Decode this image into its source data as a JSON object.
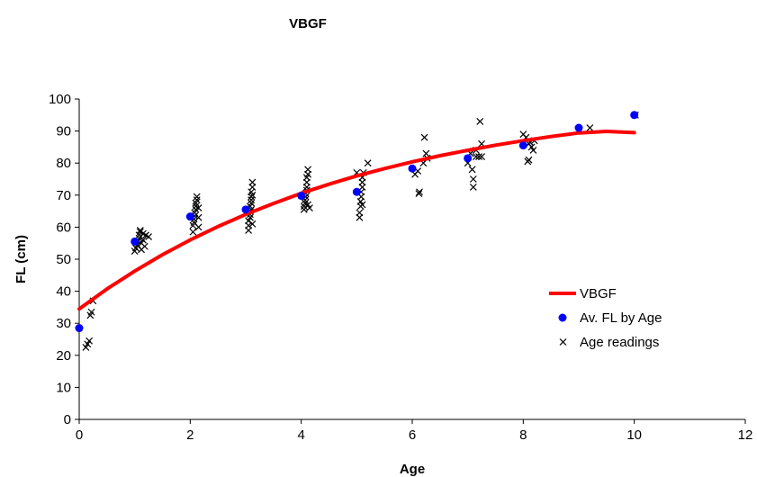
{
  "chart_data": {
    "type": "scatter",
    "title": "VBGF",
    "xlabel": "Age",
    "ylabel": "FL (cm)",
    "xlim": [
      0,
      12
    ],
    "ylim": [
      0,
      100
    ],
    "xticks": [
      0,
      2,
      4,
      6,
      8,
      10,
      12
    ],
    "yticks": [
      0,
      10,
      20,
      30,
      40,
      50,
      60,
      70,
      80,
      90,
      100
    ],
    "grid": false,
    "legend_position": "right",
    "series": [
      {
        "name": "VBGF",
        "kind": "line",
        "color": "#ff0000",
        "points": [
          [
            0,
            34.5
          ],
          [
            0.5,
            40.7
          ],
          [
            1,
            46.3
          ],
          [
            1.5,
            51.4
          ],
          [
            2,
            56.0
          ],
          [
            2.5,
            60.2
          ],
          [
            3,
            64.0
          ],
          [
            3.5,
            67.4
          ],
          [
            4,
            70.6
          ],
          [
            4.5,
            73.4
          ],
          [
            5,
            76.0
          ],
          [
            5.5,
            78.3
          ],
          [
            6,
            80.4
          ],
          [
            6.5,
            82.3
          ],
          [
            7,
            84.0
          ],
          [
            7.5,
            85.6
          ],
          [
            8,
            87.0
          ],
          [
            8.5,
            88.3
          ],
          [
            9,
            89.4
          ],
          [
            9.5,
            89.9
          ],
          [
            10,
            89.5
          ]
        ]
      },
      {
        "name": "Av. FL by Age",
        "kind": "dot",
        "color": "#0000ff",
        "points": [
          [
            0,
            28.5
          ],
          [
            1,
            55.5
          ],
          [
            2,
            63.3
          ],
          [
            3,
            65.5
          ],
          [
            4,
            69.8
          ],
          [
            5,
            71.0
          ],
          [
            6,
            78.3
          ],
          [
            7,
            81.5
          ],
          [
            8,
            85.5
          ],
          [
            9,
            91.0
          ],
          [
            10,
            95.0
          ]
        ]
      },
      {
        "name": "Age readings",
        "kind": "cross",
        "color": "#000000",
        "points": [
          [
            0.12,
            22.5
          ],
          [
            0.15,
            23.5
          ],
          [
            0.18,
            24.5
          ],
          [
            0.2,
            32.5
          ],
          [
            0.22,
            33.5
          ],
          [
            0.25,
            37.0
          ],
          [
            1.0,
            52.5
          ],
          [
            1.02,
            53.5
          ],
          [
            1.05,
            54.5
          ],
          [
            1.05,
            55.5
          ],
          [
            1.08,
            56.5
          ],
          [
            1.08,
            57.5
          ],
          [
            1.1,
            58.5
          ],
          [
            1.1,
            59.0
          ],
          [
            1.12,
            53.0
          ],
          [
            1.12,
            55.0
          ],
          [
            1.15,
            56.0
          ],
          [
            1.15,
            58.0
          ],
          [
            1.18,
            54.0
          ],
          [
            1.2,
            57.5
          ],
          [
            1.25,
            57.0
          ],
          [
            2.05,
            58.5
          ],
          [
            2.05,
            60.5
          ],
          [
            2.07,
            61.5
          ],
          [
            2.07,
            62.5
          ],
          [
            2.08,
            63.5
          ],
          [
            2.08,
            64.5
          ],
          [
            2.1,
            65.5
          ],
          [
            2.1,
            66.5
          ],
          [
            2.1,
            67.5
          ],
          [
            2.12,
            68.5
          ],
          [
            2.12,
            69.5
          ],
          [
            2.15,
            60.0
          ],
          [
            2.15,
            63.0
          ],
          [
            2.15,
            66.0
          ],
          [
            3.05,
            59.0
          ],
          [
            3.05,
            60.5
          ],
          [
            3.05,
            62.0
          ],
          [
            3.08,
            63.0
          ],
          [
            3.08,
            64.0
          ],
          [
            3.08,
            65.0
          ],
          [
            3.08,
            66.5
          ],
          [
            3.1,
            67.5
          ],
          [
            3.1,
            68.5
          ],
          [
            3.1,
            69.5
          ],
          [
            3.1,
            71.0
          ],
          [
            3.12,
            72.5
          ],
          [
            3.12,
            74.0
          ],
          [
            3.12,
            61.0
          ],
          [
            3.12,
            70.0
          ],
          [
            3.1,
            65.5
          ],
          [
            4.05,
            65.5
          ],
          [
            4.05,
            66.5
          ],
          [
            4.07,
            67.5
          ],
          [
            4.07,
            68.5
          ],
          [
            4.08,
            69.5
          ],
          [
            4.08,
            70.5
          ],
          [
            4.1,
            71.5
          ],
          [
            4.1,
            72.5
          ],
          [
            4.1,
            74.0
          ],
          [
            4.1,
            75.5
          ],
          [
            4.12,
            76.5
          ],
          [
            4.12,
            78.0
          ],
          [
            4.12,
            67.0
          ],
          [
            4.15,
            66.0
          ],
          [
            5.05,
            63.0
          ],
          [
            5.05,
            64.5
          ],
          [
            5.07,
            66.5
          ],
          [
            5.07,
            68.0
          ],
          [
            5.08,
            69.5
          ],
          [
            5.08,
            71.0
          ],
          [
            5.1,
            72.5
          ],
          [
            5.1,
            74.0
          ],
          [
            5.1,
            75.5
          ],
          [
            5.12,
            77.0
          ],
          [
            5.0,
            77.0
          ],
          [
            5.2,
            80.0
          ],
          [
            5.1,
            67.0
          ],
          [
            6.05,
            76.5
          ],
          [
            6.1,
            77.5
          ],
          [
            6.12,
            70.5
          ],
          [
            6.13,
            71.0
          ],
          [
            6.2,
            80.0
          ],
          [
            6.22,
            88.0
          ],
          [
            6.25,
            83.0
          ],
          [
            6.27,
            81.5
          ],
          [
            7.0,
            80.0
          ],
          [
            7.05,
            83.0
          ],
          [
            7.08,
            78.0
          ],
          [
            7.1,
            75.0
          ],
          [
            7.1,
            72.5
          ],
          [
            7.15,
            82.0
          ],
          [
            7.15,
            84.0
          ],
          [
            7.2,
            82.0
          ],
          [
            7.22,
            93.0
          ],
          [
            7.25,
            86.0
          ],
          [
            7.25,
            82.0
          ],
          [
            8.0,
            89.0
          ],
          [
            8.05,
            88.0
          ],
          [
            8.08,
            80.5
          ],
          [
            8.1,
            81.0
          ],
          [
            8.12,
            86.5
          ],
          [
            8.15,
            85.0
          ],
          [
            8.18,
            84.0
          ],
          [
            8.2,
            87.0
          ],
          [
            8.1,
            86.0
          ],
          [
            9.2,
            91.0
          ],
          [
            10.02,
            95.0
          ]
        ]
      }
    ]
  }
}
